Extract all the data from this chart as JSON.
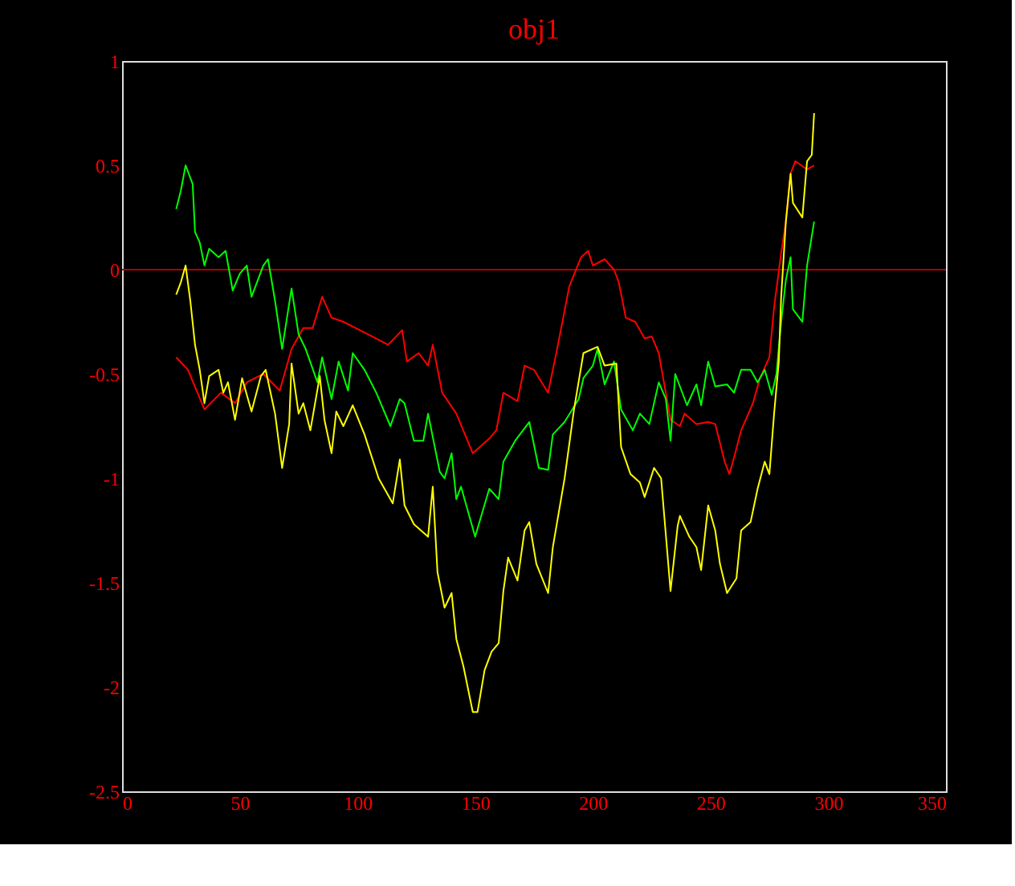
{
  "chart_data": {
    "type": "line",
    "title": "obj1",
    "xlim": [
      0,
      350
    ],
    "ylim": [
      -2.5,
      1
    ],
    "xticks": [
      0,
      50,
      100,
      150,
      200,
      250,
      300,
      350
    ],
    "yticks": [
      -2.5,
      -2,
      -1.5,
      -1,
      -0.5,
      0,
      0.5,
      1
    ],
    "grid": false,
    "line_style": "solid",
    "marker": "none",
    "ref_lines": [
      {
        "axis": "y",
        "value": 0,
        "color": "#b00000"
      }
    ],
    "series": [
      {
        "color": "#ff0000",
        "x": [
          23,
          28,
          35,
          42,
          48,
          53,
          60,
          67,
          72,
          77,
          81,
          85,
          89,
          94,
          101,
          108,
          113,
          119,
          121,
          126,
          130,
          132,
          136,
          142,
          149,
          156,
          159,
          162,
          168,
          171,
          175,
          181,
          185,
          190,
          195,
          198,
          200,
          205,
          209,
          211,
          214,
          218,
          222,
          225,
          228,
          233,
          237,
          239,
          244,
          249,
          252,
          256,
          258,
          260,
          263,
          268,
          271,
          275,
          277,
          280,
          282,
          284,
          286,
          291,
          294
        ],
        "values": [
          -0.42,
          -0.48,
          -0.67,
          -0.59,
          -0.64,
          -0.54,
          -0.5,
          -0.58,
          -0.38,
          -0.28,
          -0.28,
          -0.13,
          -0.23,
          -0.25,
          -0.29,
          -0.33,
          -0.36,
          -0.29,
          -0.44,
          -0.4,
          -0.46,
          -0.36,
          -0.59,
          -0.69,
          -0.88,
          -0.81,
          -0.77,
          -0.59,
          -0.63,
          -0.46,
          -0.48,
          -0.59,
          -0.37,
          -0.08,
          0.06,
          0.09,
          0.02,
          0.05,
          0.0,
          -0.06,
          -0.23,
          -0.25,
          -0.33,
          -0.32,
          -0.4,
          -0.72,
          -0.75,
          -0.69,
          -0.74,
          -0.73,
          -0.74,
          -0.92,
          -0.98,
          -0.9,
          -0.77,
          -0.64,
          -0.52,
          -0.42,
          -0.18,
          0.08,
          0.23,
          0.46,
          0.52,
          0.48,
          0.5
        ]
      },
      {
        "color": "#00ff00",
        "x": [
          23,
          25,
          27,
          30,
          31,
          33,
          35,
          37,
          41,
          44,
          47,
          50,
          53,
          55,
          60,
          62,
          65,
          68,
          72,
          75,
          78,
          83,
          85,
          89,
          92,
          96,
          98,
          103,
          108,
          114,
          118,
          120,
          124,
          128,
          130,
          135,
          137,
          140,
          142,
          144,
          150,
          156,
          160,
          162,
          167,
          173,
          177,
          181,
          183,
          188,
          194,
          196,
          200,
          202,
          205,
          209,
          212,
          217,
          220,
          224,
          228,
          231,
          233,
          235,
          240,
          244,
          246,
          249,
          252,
          257,
          260,
          263,
          267,
          270,
          273,
          276,
          278,
          280,
          282,
          284,
          285,
          289,
          291,
          294
        ],
        "values": [
          0.29,
          0.38,
          0.5,
          0.41,
          0.18,
          0.13,
          0.02,
          0.1,
          0.06,
          0.09,
          -0.1,
          -0.02,
          0.02,
          -0.13,
          0.02,
          0.05,
          -0.15,
          -0.38,
          -0.09,
          -0.31,
          -0.38,
          -0.54,
          -0.42,
          -0.62,
          -0.44,
          -0.58,
          -0.4,
          -0.48,
          -0.59,
          -0.75,
          -0.62,
          -0.64,
          -0.82,
          -0.82,
          -0.69,
          -0.97,
          -1.0,
          -0.88,
          -1.1,
          -1.04,
          -1.28,
          -1.05,
          -1.1,
          -0.92,
          -0.82,
          -0.73,
          -0.95,
          -0.96,
          -0.79,
          -0.73,
          -0.62,
          -0.52,
          -0.46,
          -0.38,
          -0.55,
          -0.44,
          -0.67,
          -0.77,
          -0.69,
          -0.74,
          -0.54,
          -0.62,
          -0.82,
          -0.5,
          -0.65,
          -0.55,
          -0.65,
          -0.44,
          -0.56,
          -0.55,
          -0.59,
          -0.48,
          -0.48,
          -0.54,
          -0.48,
          -0.6,
          -0.5,
          -0.25,
          -0.05,
          0.06,
          -0.19,
          -0.25,
          0.02,
          0.23
        ]
      },
      {
        "color": "#ffff00",
        "x": [
          23,
          25,
          27,
          29,
          31,
          33,
          35,
          37,
          41,
          43,
          45,
          48,
          51,
          55,
          59,
          61,
          65,
          68,
          71,
          72,
          75,
          77,
          80,
          84,
          86,
          89,
          91,
          94,
          98,
          103,
          109,
          115,
          118,
          120,
          124,
          130,
          132,
          134,
          137,
          140,
          142,
          145,
          149,
          151,
          154,
          157,
          160,
          162,
          164,
          168,
          171,
          173,
          176,
          181,
          183,
          188,
          192,
          196,
          202,
          205,
          210,
          212,
          216,
          220,
          222,
          226,
          229,
          233,
          236,
          237,
          241,
          244,
          246,
          249,
          252,
          254,
          257,
          261,
          263,
          267,
          270,
          273,
          275,
          277,
          279,
          280,
          282,
          284,
          285,
          289,
          291,
          293,
          294
        ],
        "values": [
          -0.12,
          -0.06,
          0.02,
          -0.15,
          -0.36,
          -0.48,
          -0.64,
          -0.51,
          -0.48,
          -0.59,
          -0.54,
          -0.72,
          -0.52,
          -0.68,
          -0.51,
          -0.48,
          -0.69,
          -0.95,
          -0.74,
          -0.45,
          -0.69,
          -0.64,
          -0.77,
          -0.51,
          -0.72,
          -0.88,
          -0.68,
          -0.75,
          -0.65,
          -0.79,
          -1.0,
          -1.12,
          -0.91,
          -1.13,
          -1.22,
          -1.28,
          -1.04,
          -1.45,
          -1.62,
          -1.55,
          -1.77,
          -1.9,
          -2.12,
          -2.12,
          -1.92,
          -1.83,
          -1.79,
          -1.54,
          -1.38,
          -1.49,
          -1.25,
          -1.21,
          -1.41,
          -1.55,
          -1.33,
          -1.0,
          -0.67,
          -0.4,
          -0.37,
          -0.46,
          -0.45,
          -0.85,
          -0.98,
          -1.02,
          -1.09,
          -0.95,
          -1.0,
          -1.54,
          -1.23,
          -1.18,
          -1.28,
          -1.33,
          -1.44,
          -1.13,
          -1.25,
          -1.41,
          -1.55,
          -1.48,
          -1.25,
          -1.21,
          -1.05,
          -0.92,
          -0.98,
          -0.69,
          -0.44,
          -0.13,
          0.23,
          0.46,
          0.32,
          0.25,
          0.52,
          0.55,
          0.75
        ]
      }
    ]
  }
}
